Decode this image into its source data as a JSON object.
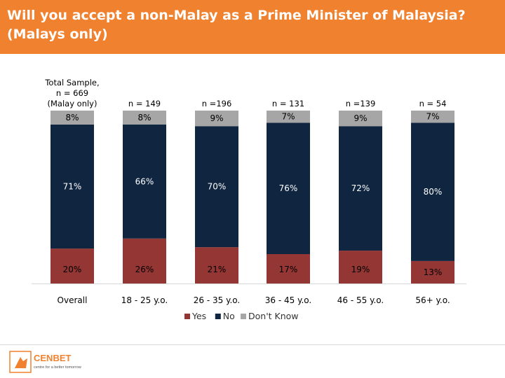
{
  "header": {
    "title_line1": "Will you accept a non-Malay as a Prime Minister of Malaysia?",
    "title_line2": "(Malays only)"
  },
  "chart_data": {
    "type": "bar",
    "stacked": true,
    "percent_stacked": true,
    "ylim": [
      0,
      100
    ],
    "grid": false,
    "legend_position": "bottom",
    "categories": [
      "Overall",
      "18 - 25 y.o.",
      "26 - 35 y.o.",
      "36 - 45 y.o.",
      "46 - 55 y.o.",
      "56+ y.o."
    ],
    "sample_labels": [
      [
        "Total Sample,",
        "n = 669",
        "(Malay only)"
      ],
      [
        "n = 149"
      ],
      [
        "n =196"
      ],
      [
        "n = 131"
      ],
      [
        "n =139"
      ],
      [
        "n = 54"
      ]
    ],
    "series": [
      {
        "name": "Yes",
        "color": "#943634",
        "values": [
          20,
          26,
          21,
          17,
          19,
          13
        ],
        "labels": [
          "20%",
          "26%",
          "21%",
          "17%",
          "19%",
          "13%"
        ]
      },
      {
        "name": "No",
        "color": "#0f2540",
        "values": [
          71,
          66,
          70,
          76,
          72,
          80
        ],
        "labels": [
          "71%",
          "66%",
          "70%",
          "76%",
          "72%",
          "80%"
        ]
      },
      {
        "name": "Don't Know",
        "color": "#a6a6a6",
        "values": [
          8,
          8,
          9,
          7,
          9,
          7
        ],
        "labels": [
          "8%",
          "8%",
          "9%",
          "7%",
          "9%",
          "7%"
        ]
      }
    ]
  },
  "footer": {
    "logo_text": "CENBET",
    "logo_tagline": "centre for a better tomorrow",
    "logo_accent": "#f0812f"
  }
}
